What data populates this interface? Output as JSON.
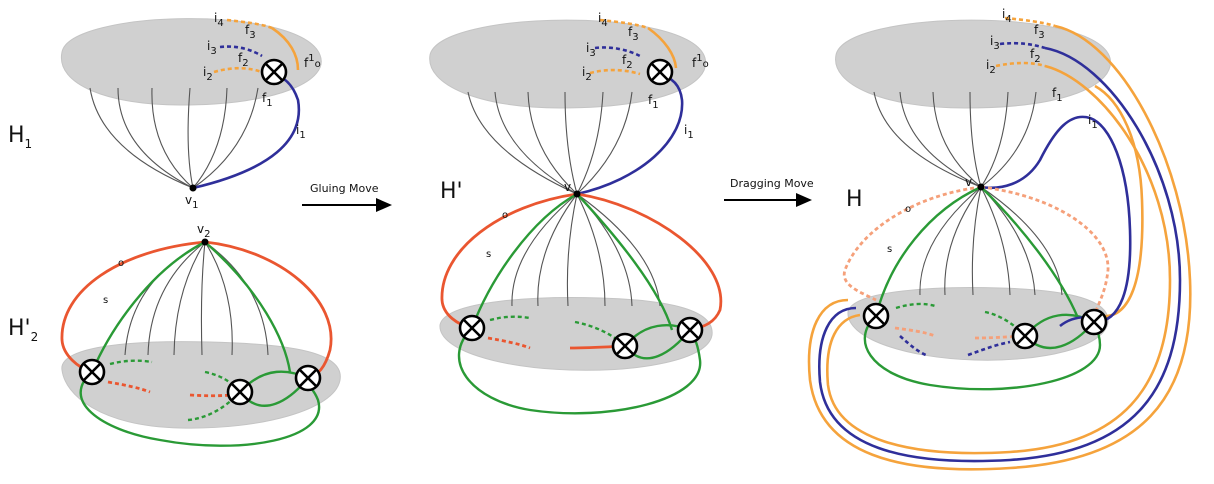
{
  "labels": {
    "h1": "H",
    "h1_sub": "1",
    "h2": "H'",
    "h2_sub": "2",
    "hprime": "H'",
    "h": "H",
    "v1": "v",
    "v1_sub": "1",
    "v2": "v",
    "v2_sub": "2",
    "v": "v",
    "o": "o",
    "s": "s",
    "i1": "i",
    "i2": "i",
    "i3": "i",
    "i4": "i",
    "f1": "f",
    "f2": "f",
    "f3": "f",
    "f0": "f",
    "f0_sup": "1",
    "f0_sub": "o",
    "sub1": "1",
    "sub2": "2",
    "sub3": "3",
    "sub4": "4"
  },
  "moves": {
    "gluing": "Gluing Move",
    "dragging": "Dragging Move"
  },
  "colors": {
    "disk": "#d0d0d0",
    "blue": "#2f2f9a",
    "orange": "#f5a33c",
    "green": "#2a9a36",
    "red": "#ea5630",
    "gray_edge": "#555555"
  }
}
